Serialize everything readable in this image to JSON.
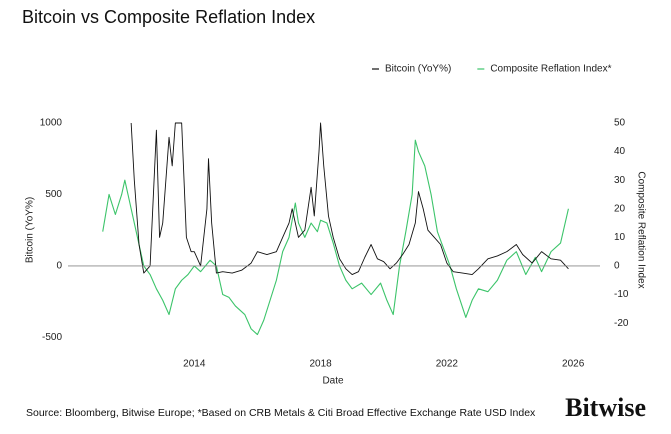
{
  "chart_data": {
    "type": "line",
    "title": "Bitcoin vs Composite Reflation Index",
    "xlabel": "Date",
    "ylabel": "Bitcoin (YoY%)",
    "y2label": "Composite Reflation Index",
    "source": "Source: Bloomberg, Bitwise Europe; *Based on CRB Metals & Citi Broad Effective Exchange Rate USD Index",
    "logo": "Bitwise",
    "xlim": [
      2010,
      2026.85
    ],
    "xticks": [
      2014,
      2018,
      2022,
      2026
    ],
    "ylim": [
      -560,
      1000
    ],
    "yticks": [
      1000,
      500,
      0,
      -500
    ],
    "y2lim": [
      -28,
      50
    ],
    "y2ticks": [
      50,
      40,
      30,
      20,
      10,
      0,
      -10,
      -20
    ],
    "legend": "top-right",
    "series": [
      {
        "name": "Bitcoin (YoY%)",
        "color": "#111111",
        "x": [
          2012.0,
          2012.1,
          2012.25,
          2012.4,
          2012.6,
          2012.8,
          2012.9,
          2013.0,
          2013.2,
          2013.3,
          2013.4,
          2013.6,
          2013.75,
          2013.9,
          2014.0,
          2014.2,
          2014.4,
          2014.45,
          2014.55,
          2014.7,
          2014.9,
          2015.2,
          2015.5,
          2015.8,
          2016.0,
          2016.3,
          2016.6,
          2016.8,
          2017.0,
          2017.1,
          2017.3,
          2017.5,
          2017.7,
          2017.8,
          2017.95,
          2018.0,
          2018.1,
          2018.25,
          2018.4,
          2018.6,
          2018.8,
          2019.0,
          2019.2,
          2019.4,
          2019.6,
          2019.8,
          2020.0,
          2020.2,
          2020.4,
          2020.6,
          2020.8,
          2021.0,
          2021.1,
          2021.25,
          2021.4,
          2021.6,
          2021.8,
          2022.0,
          2022.2,
          2022.5,
          2022.8,
          2023.0,
          2023.3,
          2023.6,
          2023.9,
          2024.2,
          2024.4,
          2024.7,
          2025.0,
          2025.3,
          2025.6,
          2025.85
        ],
        "values": [
          1000,
          600,
          150,
          -50,
          0,
          950,
          200,
          300,
          900,
          700,
          1000,
          1000,
          200,
          100,
          100,
          0,
          400,
          750,
          300,
          -50,
          -40,
          -50,
          -30,
          20,
          100,
          80,
          100,
          200,
          300,
          400,
          200,
          250,
          550,
          350,
          800,
          1000,
          700,
          350,
          200,
          50,
          -20,
          -60,
          -40,
          60,
          150,
          50,
          30,
          -20,
          20,
          80,
          150,
          300,
          520,
          400,
          250,
          200,
          150,
          20,
          -40,
          -50,
          -60,
          -20,
          50,
          70,
          100,
          150,
          80,
          20,
          100,
          50,
          40,
          -20
        ]
      },
      {
        "name": "Composite Reflation Index*",
        "color": "#3cc46a",
        "axis": "y2",
        "x": [
          2011.1,
          2011.3,
          2011.5,
          2011.7,
          2011.8,
          2012.0,
          2012.2,
          2012.4,
          2012.6,
          2012.8,
          2013.0,
          2013.2,
          2013.4,
          2013.6,
          2013.8,
          2014.0,
          2014.2,
          2014.5,
          2014.7,
          2014.9,
          2015.1,
          2015.3,
          2015.6,
          2015.8,
          2016.0,
          2016.2,
          2016.4,
          2016.6,
          2016.8,
          2017.0,
          2017.2,
          2017.3,
          2017.5,
          2017.7,
          2017.9,
          2018.0,
          2018.2,
          2018.4,
          2018.6,
          2018.8,
          2019.0,
          2019.3,
          2019.6,
          2019.9,
          2020.1,
          2020.3,
          2020.5,
          2020.7,
          2020.9,
          2021.0,
          2021.1,
          2021.3,
          2021.5,
          2021.7,
          2021.9,
          2022.1,
          2022.3,
          2022.6,
          2022.8,
          2023.0,
          2023.3,
          2023.6,
          2023.9,
          2024.2,
          2024.5,
          2024.8,
          2025.0,
          2025.3,
          2025.6,
          2025.85
        ],
        "values": [
          12,
          25,
          18,
          25,
          30,
          20,
          10,
          0,
          -3,
          -8,
          -12,
          -17,
          -8,
          -5,
          -3,
          0,
          -2,
          2,
          0,
          -10,
          -11,
          -14,
          -17,
          -22,
          -24,
          -19,
          -12,
          -5,
          5,
          10,
          22,
          15,
          10,
          15,
          12,
          16,
          15,
          8,
          0,
          -5,
          -8,
          -6,
          -10,
          -6,
          -12,
          -17,
          0,
          12,
          25,
          44,
          40,
          35,
          25,
          12,
          6,
          0,
          -8,
          -18,
          -12,
          -8,
          -9,
          -5,
          2,
          5,
          -3,
          3,
          -2,
          5,
          8,
          20
        ]
      }
    ]
  }
}
